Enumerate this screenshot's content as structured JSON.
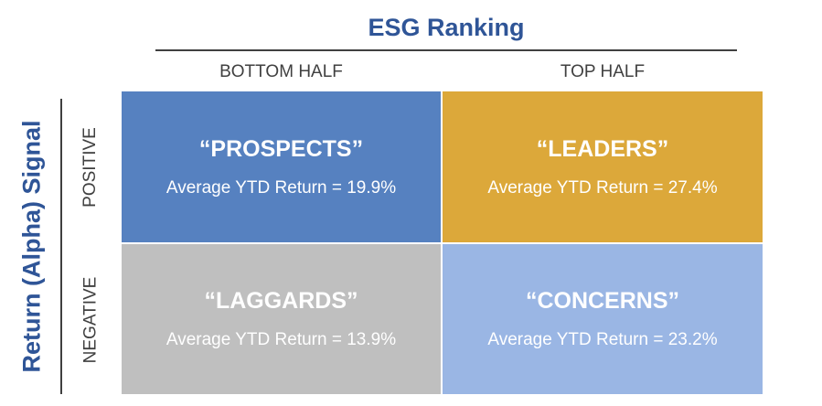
{
  "colors": {
    "title": "#2f5597",
    "prospects": "#5681c0",
    "leaders": "#dca83a",
    "laggards": "#bfbfbf",
    "concerns": "#9ab6e4"
  },
  "x_axis": {
    "title": "ESG Ranking",
    "columns": [
      "BOTTOM HALF",
      "TOP HALF"
    ]
  },
  "y_axis": {
    "title": "Return (Alpha) Signal",
    "rows": [
      "POSITIVE",
      "NEGATIVE"
    ]
  },
  "quadrants": [
    {
      "title": "“PROSPECTS”",
      "return_text": "Average YTD Return = 19.9%"
    },
    {
      "title": "“LEADERS”",
      "return_text": "Average YTD Return = 27.4%"
    },
    {
      "title": "“LAGGARDS”",
      "return_text": "Average YTD Return = 13.9%"
    },
    {
      "title": "“CONCERNS”",
      "return_text": "Average YTD Return = 23.2%"
    }
  ]
}
